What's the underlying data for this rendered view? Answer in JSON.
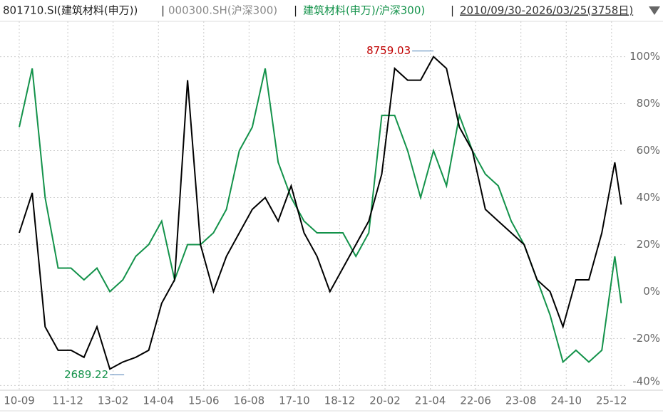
{
  "chart_data": {
    "type": "line",
    "title_parts": {
      "symbol": "801710.SI(建筑材料(申万))",
      "benchmark": "000300.SH(沪深300)",
      "ratio": "建筑材料(申万)/沪深300)",
      "date_range": "2010/09/30-2026/03/25(3758日)",
      "separator": "|"
    },
    "x": [
      "10-09",
      "11-01",
      "11-05",
      "11-09",
      "12-01",
      "12-05",
      "12-09",
      "13-01",
      "13-05",
      "13-09",
      "14-01",
      "14-05",
      "14-09",
      "15-01",
      "15-05",
      "15-09",
      "16-01",
      "16-05",
      "16-09",
      "17-01",
      "17-05",
      "17-09",
      "18-01",
      "18-05",
      "18-09",
      "19-01",
      "19-05",
      "19-09",
      "20-01",
      "20-05",
      "20-09",
      "21-01",
      "21-05",
      "21-09",
      "22-01",
      "22-05",
      "22-09",
      "23-01",
      "23-05",
      "23-09",
      "24-01",
      "24-05",
      "24-09",
      "25-01",
      "25-05",
      "25-09",
      "26-01",
      "26-03"
    ],
    "series": [
      {
        "name": "801710.SI(建筑材料(申万))",
        "color": "#000000",
        "values": [
          25,
          42,
          -15,
          -25,
          -25,
          -28,
          -15,
          -33,
          -30,
          -28,
          -25,
          -5,
          5,
          90,
          20,
          0,
          15,
          25,
          35,
          40,
          30,
          45,
          25,
          15,
          0,
          10,
          20,
          30,
          50,
          95,
          90,
          90,
          100,
          95,
          70,
          60,
          35,
          30,
          25,
          20,
          5,
          0,
          -15,
          5,
          5,
          25,
          55,
          37
        ]
      },
      {
        "name": "建筑材料(申万)/沪深300)",
        "color": "#13924a",
        "values": [
          70,
          95,
          40,
          10,
          10,
          5,
          10,
          0,
          5,
          15,
          20,
          30,
          5,
          20,
          20,
          25,
          35,
          60,
          70,
          95,
          55,
          40,
          30,
          25,
          25,
          25,
          15,
          25,
          75,
          75,
          60,
          40,
          60,
          45,
          75,
          60,
          50,
          45,
          30,
          20,
          5,
          -10,
          -30,
          -25,
          -30,
          -25,
          15,
          -5
        ]
      }
    ],
    "annotations": {
      "max": "8759.03",
      "min": "2689.22"
    },
    "ylim": [
      -42,
      112
    ],
    "yticks": [
      {
        "value": 100,
        "label": "100%"
      },
      {
        "value": 80,
        "label": "80%"
      },
      {
        "value": 60,
        "label": "60%"
      },
      {
        "value": 40,
        "label": "40%"
      },
      {
        "value": 20,
        "label": "20%"
      },
      {
        "value": 0,
        "label": "0%"
      },
      {
        "value": -20,
        "label": "-20%"
      },
      {
        "value": -40,
        "label": "-40%"
      }
    ],
    "xticks": [
      "10-09",
      "11-12",
      "13-02",
      "14-04",
      "15-06",
      "16-08",
      "17-10",
      "18-12",
      "20-02",
      "21-04",
      "22-06",
      "23-08",
      "24-10",
      "25-12"
    ],
    "grid": true
  }
}
